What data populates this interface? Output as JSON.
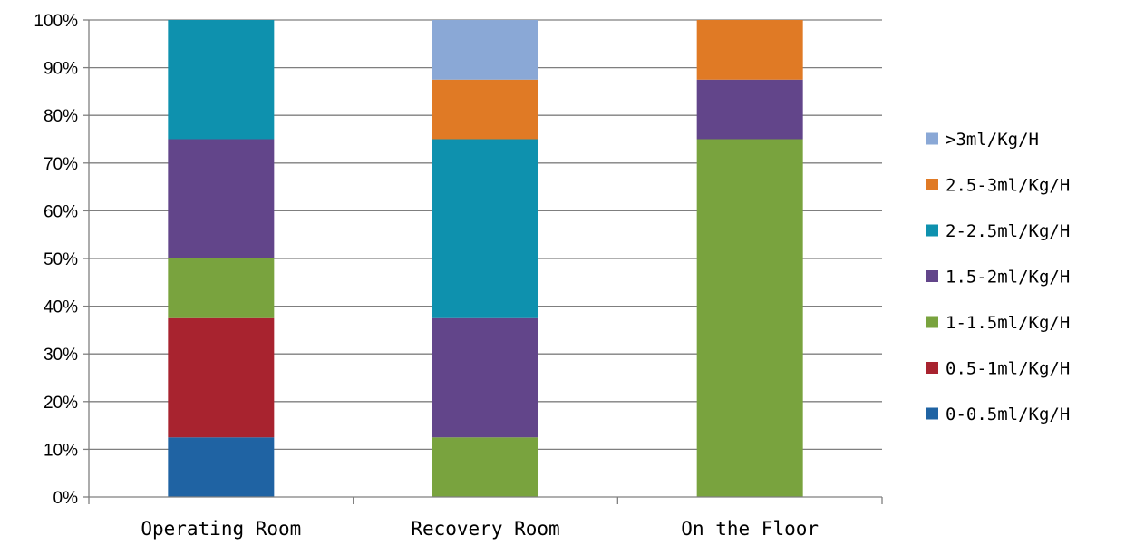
{
  "chart_data": {
    "type": "bar",
    "stacked": true,
    "title": "",
    "xlabel": "",
    "ylabel": "",
    "ylim": [
      0,
      100
    ],
    "y_ticks": [
      "0%",
      "10%",
      "20%",
      "30%",
      "40%",
      "50%",
      "60%",
      "70%",
      "80%",
      "90%",
      "100%"
    ],
    "grid": true,
    "legend_position": "right",
    "categories": [
      "Operating Room",
      "Recovery Room",
      "On the Floor"
    ],
    "series": [
      {
        "name": "0-0.5ml/Kg/H",
        "color": "#1f63a3",
        "values": [
          12.5,
          0,
          0
        ]
      },
      {
        "name": "0.5-1ml/Kg/H",
        "color": "#a8232f",
        "values": [
          25,
          0,
          0
        ]
      },
      {
        "name": "1-1.5ml/Kg/H",
        "color": "#79a33e",
        "values": [
          12.5,
          12.5,
          75
        ]
      },
      {
        "name": "1.5-2ml/Kg/H",
        "color": "#62458a",
        "values": [
          25,
          25,
          12.5
        ]
      },
      {
        "name": "2-2.5ml/Kg/H",
        "color": "#0e91ae",
        "values": [
          25,
          37.5,
          0
        ]
      },
      {
        "name": "2.5-3ml/Kg/H",
        "color": "#e07a25",
        "values": [
          0,
          12.5,
          12.5
        ]
      },
      {
        "name": ">3ml/Kg/H",
        "color": "#8aa8d6",
        "values": [
          0,
          12.5,
          0
        ]
      }
    ]
  }
}
